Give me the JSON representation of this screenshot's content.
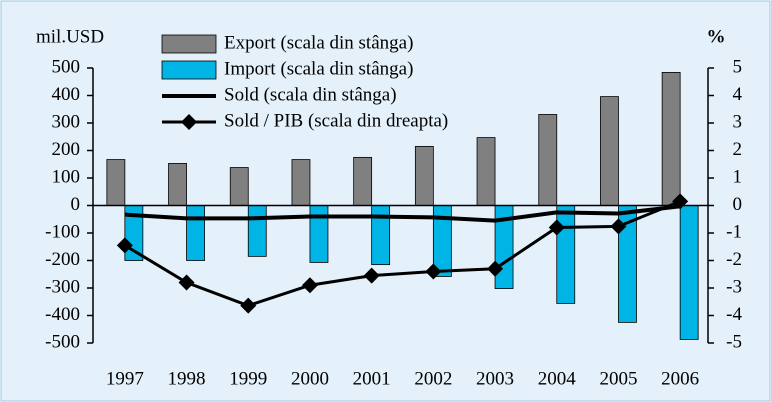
{
  "chart_data": {
    "type": "bar",
    "y_label": "mil.USD",
    "y2_label": "%",
    "categories": [
      "1997",
      "1998",
      "1999",
      "2000",
      "2001",
      "2002",
      "2003",
      "2004",
      "2005",
      "2006"
    ],
    "series": [
      {
        "name": "Export (scala din stânga)",
        "type": "bar",
        "color": "#808080",
        "values": [
          167,
          153,
          138,
          167,
          175,
          215,
          247,
          331,
          396,
          484
        ]
      },
      {
        "name": "Import (scala din stânga)",
        "type": "bar",
        "color": "#00b4e6",
        "values": [
          -200,
          -200,
          -185,
          -207,
          -215,
          -258,
          -302,
          -356,
          -425,
          -487
        ]
      },
      {
        "name": "Sold (scala din stânga)",
        "type": "line",
        "color": "#000000",
        "values": [
          -33,
          -47,
          -47,
          -40,
          -40,
          -43,
          -55,
          -25,
          -29,
          -3
        ]
      },
      {
        "name": "Sold / PIB (scala din dreapta)",
        "type": "line",
        "marker": "diamond",
        "axis": "y2",
        "color": "#000000",
        "values": [
          -1.45,
          -2.8,
          -3.64,
          -2.9,
          -2.55,
          -2.4,
          -2.3,
          -0.8,
          -0.76,
          0.15
        ]
      }
    ],
    "ylim": [
      -500,
      500
    ],
    "yticks": [
      -500,
      -400,
      -300,
      -200,
      -100,
      0,
      100,
      200,
      300,
      400,
      500
    ],
    "y2lim": [
      -5,
      5
    ],
    "y2ticks": [
      -5,
      -4,
      -3,
      -2,
      -1,
      0,
      1,
      2,
      3,
      4,
      5
    ]
  }
}
